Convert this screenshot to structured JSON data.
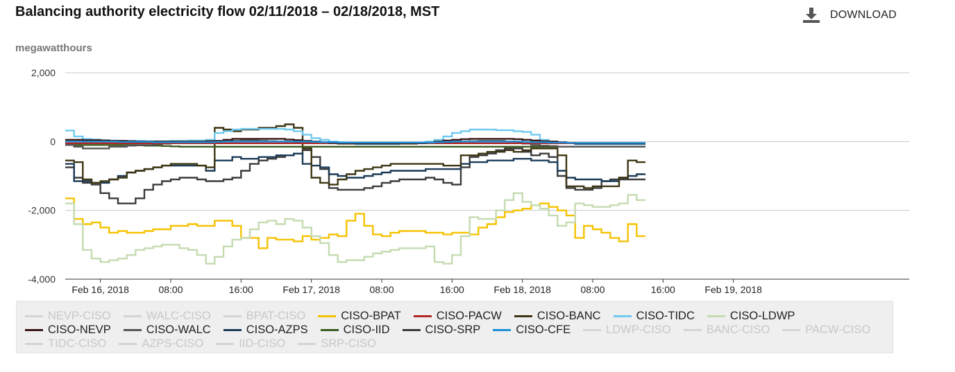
{
  "header": {
    "title": "Balancing authority electricity flow 02/11/2018 – 02/18/2018, MST",
    "download_label": "DOWNLOAD",
    "unit_label": "megawatthours"
  },
  "chart_data": {
    "type": "line",
    "title": "Balancing authority electricity flow 02/11/2018 – 02/18/2018, MST",
    "ylabel": "megawatthours",
    "xlabel": "",
    "ylim": [
      -4000,
      2000
    ],
    "yticks": [
      2000,
      0,
      -2000,
      -4000
    ],
    "ytick_labels": [
      "2,000",
      "0",
      "-2,000",
      "-4,000"
    ],
    "xlim_hours": [
      -4,
      92
    ],
    "xticks": [
      {
        "label": "Feb 16, 2018",
        "hour": 0
      },
      {
        "label": "08:00",
        "hour": 8
      },
      {
        "label": "16:00",
        "hour": 16
      },
      {
        "label": "Feb 17, 2018",
        "hour": 24
      },
      {
        "label": "08:00",
        "hour": 32
      },
      {
        "label": "16:00",
        "hour": 40
      },
      {
        "label": "Feb 18, 2018",
        "hour": 48
      },
      {
        "label": "08:00",
        "hour": 56
      },
      {
        "label": "16:00",
        "hour": 64
      },
      {
        "label": "Feb 19, 2018",
        "hour": 72
      }
    ],
    "x_start": "Feb 15, 2018 20:00",
    "x_step_hours": 1,
    "grid": "horizontal",
    "legend_position": "bottom",
    "series": [
      {
        "name": "CISO-BPAT",
        "color": "#f5c200",
        "visible": true,
        "values": [
          -1650,
          -2250,
          -2400,
          -2350,
          -2500,
          -2650,
          -2600,
          -2650,
          -2650,
          -2600,
          -2550,
          -2550,
          -2450,
          -2450,
          -2400,
          -2450,
          -2450,
          -2300,
          -2300,
          -2450,
          -2800,
          -2800,
          -3100,
          -2800,
          -2850,
          -2850,
          -2900,
          -2750,
          -2850,
          -2800,
          -2700,
          -2750,
          -2300,
          -2100,
          -2450,
          -2700,
          -2750,
          -2650,
          -2600,
          -2600,
          -2600,
          -2650,
          -2650,
          -2700,
          -2650,
          -2650,
          -2700,
          -2500,
          -2400,
          -2200,
          -2050,
          -2000,
          -1950,
          -1850,
          -1800,
          -1900,
          -2000,
          -2150,
          -2800,
          -2450,
          -2550,
          -2650,
          -2800,
          -2900,
          -2400,
          -2750
        ]
      },
      {
        "name": "CISO-LDWP",
        "color": "#c4dbb0",
        "visible": true,
        "values": [
          -1800,
          -2400,
          -3150,
          -3400,
          -3500,
          -3450,
          -3400,
          -3300,
          -3150,
          -3100,
          -3050,
          -3000,
          -3000,
          -3100,
          -3150,
          -3300,
          -3550,
          -3350,
          -3050,
          -2850,
          -2800,
          -2550,
          -2350,
          -2300,
          -2400,
          -2250,
          -2300,
          -2500,
          -2750,
          -2950,
          -3300,
          -3500,
          -3450,
          -3450,
          -3350,
          -3250,
          -3200,
          -3150,
          -3100,
          -3100,
          -3100,
          -3050,
          -3500,
          -3550,
          -3300,
          -2750,
          -2200,
          -2250,
          -2250,
          -2000,
          -1700,
          -1500,
          -1750,
          -1850,
          -1950,
          -2150,
          -2450,
          -2350,
          -1800,
          -1850,
          -1900,
          -1900,
          -1850,
          -1800,
          -1550,
          -1700
        ]
      },
      {
        "name": "CISO-SRP",
        "color": "#3a3a3a",
        "visible": true,
        "values": [
          -750,
          -1050,
          -1200,
          -1250,
          -1500,
          -1650,
          -1800,
          -1800,
          -1650,
          -1400,
          -1250,
          -1150,
          -1100,
          -1050,
          -1050,
          -1100,
          -1150,
          -1150,
          -1100,
          -1050,
          -850,
          -650,
          -550,
          -500,
          -450,
          -400,
          -350,
          -250,
          -450,
          -800,
          -1350,
          -1400,
          -1400,
          -1400,
          -1350,
          -1300,
          -1200,
          -1150,
          -1100,
          -1100,
          -1100,
          -1050,
          -1100,
          -1200,
          -1250,
          -750,
          -450,
          -400,
          -350,
          -250,
          -200,
          -200,
          -300,
          -400,
          -350,
          -450,
          -1000,
          -1350,
          -1400,
          -1400,
          -1350,
          -1150,
          -1100,
          -1100,
          -1100,
          -1100
        ]
      },
      {
        "name": "CISO-AZPS",
        "color": "#1b3a57",
        "visible": true,
        "values": [
          -650,
          -1150,
          -1150,
          -1200,
          -1200,
          -1100,
          -1000,
          -900,
          -850,
          -800,
          -750,
          -700,
          -700,
          -700,
          -700,
          -700,
          -850,
          -550,
          -550,
          -450,
          -500,
          -500,
          -450,
          -450,
          -400,
          -400,
          -350,
          -650,
          -700,
          -750,
          -950,
          -1000,
          -1050,
          -1050,
          -1000,
          -950,
          -900,
          -850,
          -850,
          -850,
          -850,
          -800,
          -800,
          -800,
          -800,
          -650,
          -600,
          -600,
          -550,
          -550,
          -550,
          -500,
          -500,
          -550,
          -550,
          -600,
          -850,
          -1050,
          -1100,
          -1100,
          -1100,
          -1150,
          -1150,
          -1050,
          -1000,
          -950
        ]
      },
      {
        "name": "CISO-BANC",
        "color": "#3d3512",
        "visible": true,
        "values": [
          -550,
          -600,
          -1100,
          -1200,
          -1150,
          -1100,
          -1050,
          -900,
          -850,
          -800,
          -750,
          -700,
          -650,
          -650,
          -650,
          -700,
          -750,
          400,
          350,
          300,
          350,
          350,
          400,
          400,
          450,
          500,
          400,
          -200,
          -1050,
          -1200,
          -1250,
          -1100,
          -950,
          -850,
          -800,
          -750,
          -700,
          -650,
          -650,
          -650,
          -650,
          -650,
          -650,
          -700,
          -700,
          -400,
          -400,
          -350,
          -300,
          -300,
          -250,
          -300,
          -250,
          -200,
          -200,
          -200,
          -400,
          -1300,
          -1300,
          -1350,
          -1300,
          -1300,
          -1300,
          -1050,
          -550,
          -600
        ]
      },
      {
        "name": "CISO-TIDC",
        "color": "#6fcaf0",
        "visible": true,
        "values": [
          320,
          150,
          80,
          60,
          40,
          30,
          20,
          20,
          20,
          10,
          10,
          10,
          20,
          20,
          30,
          30,
          50,
          250,
          300,
          350,
          370,
          370,
          370,
          370,
          370,
          350,
          300,
          200,
          100,
          50,
          0,
          -20,
          -50,
          -80,
          -80,
          -80,
          -80,
          -80,
          -50,
          -40,
          -30,
          0,
          50,
          150,
          250,
          300,
          350,
          350,
          350,
          330,
          330,
          300,
          280,
          200,
          50,
          0,
          -20,
          -50,
          -80,
          -80,
          -80,
          -80,
          -80,
          -80,
          -80,
          -80
        ]
      },
      {
        "name": "CISO-IID",
        "color": "#3b5a1e",
        "visible": true,
        "values": [
          -100,
          -100,
          -100,
          -100,
          -100,
          -100,
          -100,
          -100,
          -110,
          -120,
          -120,
          -130,
          -140,
          -150,
          -150,
          -150,
          -150,
          -150,
          -150,
          -150,
          -150,
          -150,
          -150,
          -150,
          -150,
          -150,
          -150,
          -150,
          -150,
          -150,
          -150,
          -150,
          -150,
          -150,
          -150,
          -150,
          -150,
          -150,
          -150,
          -150,
          -150,
          -150,
          -150,
          -150,
          -150,
          -150,
          -150,
          -150,
          -150,
          -150,
          -150,
          -150,
          -150,
          -150,
          -150,
          -150,
          -150,
          -150,
          -150,
          -150,
          -150,
          -150,
          -150,
          -150,
          -150,
          -150
        ]
      },
      {
        "name": "CISO-WALC",
        "color": "#555555",
        "visible": true,
        "values": [
          -100,
          -150,
          -200,
          -200,
          -200,
          -150,
          -150,
          -120,
          -100,
          -100,
          -80,
          -60,
          -50,
          -40,
          -30,
          -30,
          -20,
          -10,
          10,
          20,
          30,
          30,
          20,
          10,
          0,
          0,
          -10,
          -30,
          -50,
          -50,
          -50,
          -50,
          -50,
          -50,
          -50,
          -50,
          -50,
          -50,
          -50,
          -50,
          -50,
          -50,
          -50,
          -50,
          -20,
          0,
          10,
          20,
          20,
          20,
          0,
          -30,
          -60,
          -100,
          -120,
          -130,
          -150,
          -150,
          -150,
          -150,
          -150,
          -150,
          -150,
          -150,
          -150,
          -150
        ]
      },
      {
        "name": "CISO-PACW",
        "color": "#b02424",
        "visible": true,
        "values": [
          -50,
          -50,
          -50,
          -50,
          -50,
          -50,
          -50,
          -50,
          -50,
          -50,
          -50,
          -50,
          -50,
          -50,
          -50,
          -50,
          -50,
          -50,
          -50,
          -50,
          -50,
          -50,
          -50,
          -50,
          -50,
          -50,
          -50,
          -50,
          -50,
          -50,
          -50,
          -50,
          -50,
          -50,
          -50,
          -50,
          -50,
          -50,
          -50,
          -50,
          -50,
          -50,
          -50,
          -50,
          -50,
          -50,
          -50,
          -50,
          -50,
          -50,
          -50,
          -50,
          -50,
          -50,
          -50,
          -50,
          -50,
          -50,
          -50,
          -50,
          -50,
          -50,
          -50,
          -50,
          -50,
          -50
        ]
      },
      {
        "name": "CISO-NEVP",
        "color": "#3a1414",
        "visible": true,
        "values": [
          50,
          50,
          40,
          40,
          30,
          20,
          20,
          10,
          0,
          0,
          0,
          0,
          0,
          0,
          0,
          0,
          10,
          20,
          50,
          80,
          80,
          80,
          80,
          80,
          80,
          60,
          40,
          20,
          0,
          -20,
          -40,
          -60,
          -60,
          -60,
          -60,
          -60,
          -60,
          -60,
          -60,
          -60,
          -50,
          -30,
          0,
          30,
          50,
          70,
          80,
          80,
          80,
          80,
          80,
          70,
          50,
          30,
          10,
          0,
          -20,
          -40,
          -60,
          -60,
          -60,
          -60,
          -60,
          -60,
          -60,
          -60
        ]
      },
      {
        "name": "CISO-CFE",
        "color": "#1a8fd6",
        "visible": true,
        "values": [
          0,
          0,
          0,
          0,
          0,
          0,
          -10,
          -10,
          -10,
          -10,
          -20,
          -20,
          -20,
          -20,
          -20,
          -20,
          -20,
          -10,
          0,
          0,
          0,
          0,
          0,
          0,
          0,
          0,
          0,
          0,
          -10,
          -20,
          -20,
          -30,
          -30,
          -30,
          -30,
          -30,
          -30,
          -30,
          -30,
          -30,
          -30,
          -30,
          -20,
          -10,
          0,
          0,
          0,
          0,
          0,
          0,
          0,
          0,
          -10,
          -20,
          -20,
          -30,
          -30,
          -40,
          -40,
          -40,
          -40,
          -40,
          -40,
          -40,
          -40,
          -40
        ]
      }
    ]
  },
  "legend": {
    "items": [
      {
        "label": "NEVP-CISO",
        "color": "#d4d4d4",
        "visible": false
      },
      {
        "label": "WALC-CISO",
        "color": "#d4d4d4",
        "visible": false
      },
      {
        "label": "BPAT-CISO",
        "color": "#d4d4d4",
        "visible": false
      },
      {
        "label": "CISO-BPAT",
        "color": "#f5c200",
        "visible": true
      },
      {
        "label": "CISO-PACW",
        "color": "#b02424",
        "visible": true
      },
      {
        "label": "CISO-BANC",
        "color": "#3d3512",
        "visible": true
      },
      {
        "label": "CISO-TIDC",
        "color": "#6fcaf0",
        "visible": true
      },
      {
        "label": "CISO-LDWP",
        "color": "#c4dbb0",
        "visible": true
      },
      {
        "label": "CISO-NEVP",
        "color": "#3a1414",
        "visible": true
      },
      {
        "label": "CISO-WALC",
        "color": "#555555",
        "visible": true
      },
      {
        "label": "CISO-AZPS",
        "color": "#1b3a57",
        "visible": true
      },
      {
        "label": "CISO-IID",
        "color": "#3b5a1e",
        "visible": true
      },
      {
        "label": "CISO-SRP",
        "color": "#3a3a3a",
        "visible": true
      },
      {
        "label": "CISO-CFE",
        "color": "#1a8fd6",
        "visible": true
      },
      {
        "label": "LDWP-CISO",
        "color": "#d4d4d4",
        "visible": false
      },
      {
        "label": "BANC-CISO",
        "color": "#d4d4d4",
        "visible": false
      },
      {
        "label": "PACW-CISO",
        "color": "#d4d4d4",
        "visible": false
      },
      {
        "label": "TIDC-CISO",
        "color": "#d4d4d4",
        "visible": false
      },
      {
        "label": "AZPS-CISO",
        "color": "#d4d4d4",
        "visible": false
      },
      {
        "label": "IID-CISO",
        "color": "#d4d4d4",
        "visible": false
      },
      {
        "label": "SRP-CISO",
        "color": "#d4d4d4",
        "visible": false
      }
    ]
  }
}
